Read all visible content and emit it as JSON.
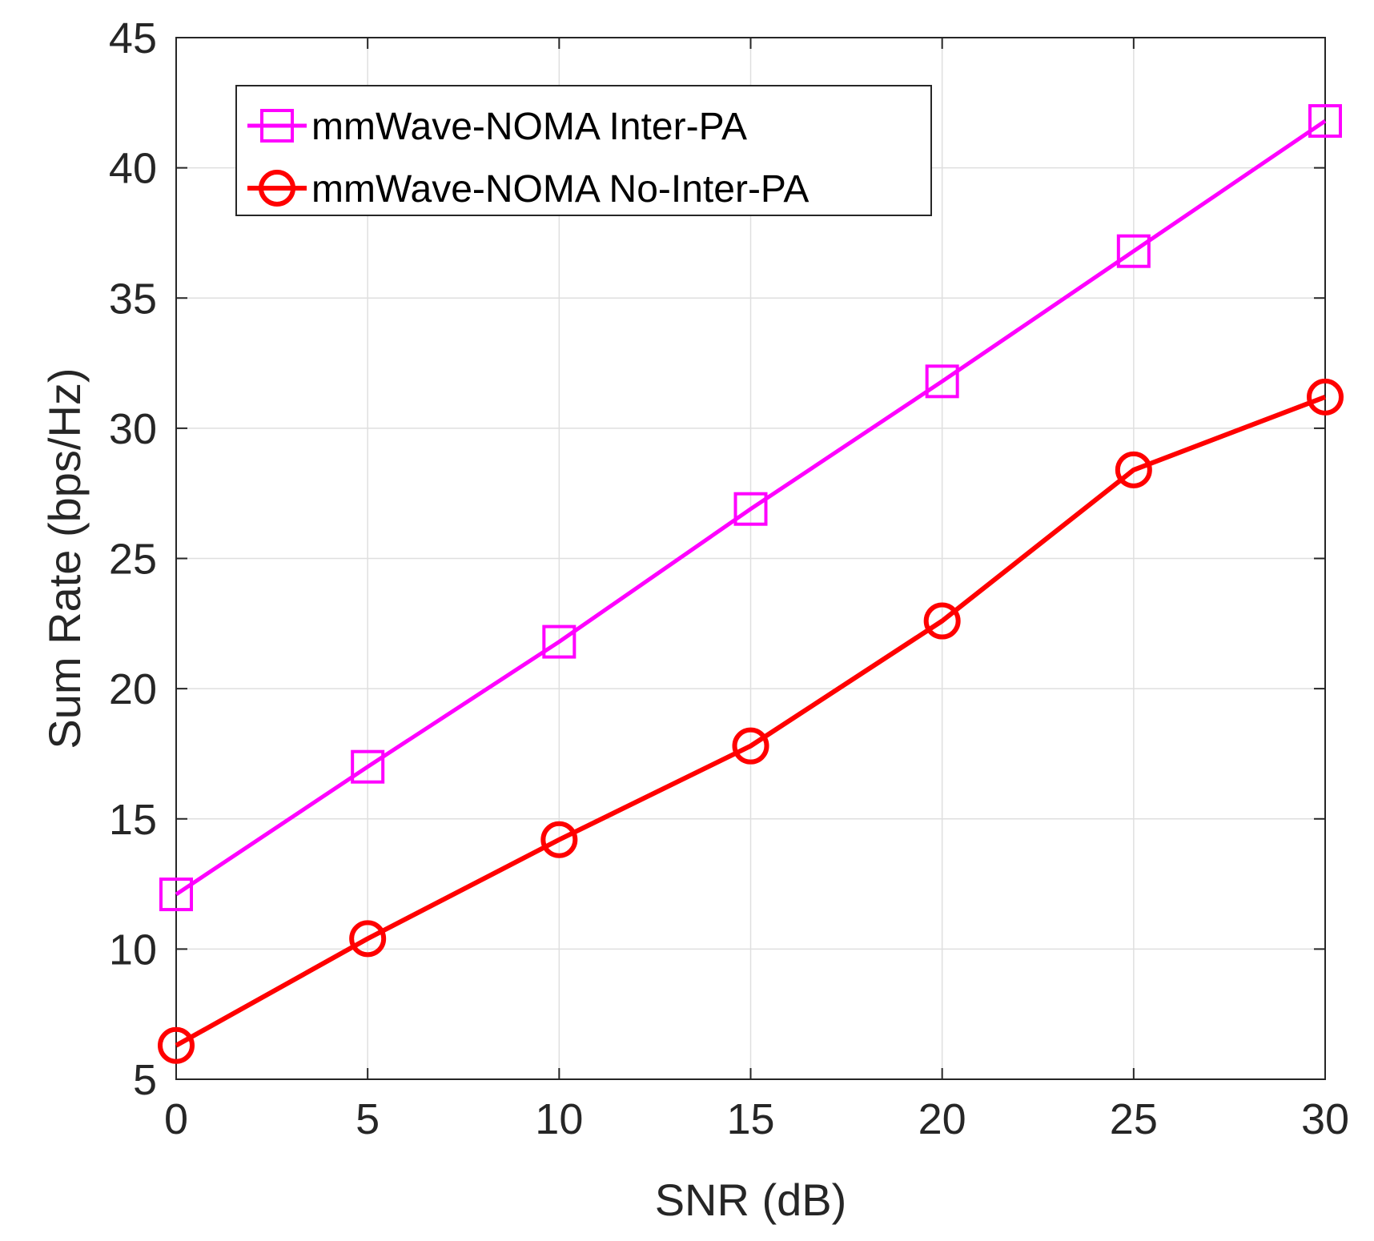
{
  "chart_data": {
    "type": "line",
    "xlabel": "SNR (dB)",
    "ylabel": "Sum Rate (bps/Hz)",
    "xlim": [
      0,
      30
    ],
    "ylim": [
      5,
      45
    ],
    "xticks": [
      0,
      5,
      10,
      15,
      20,
      25,
      30
    ],
    "yticks": [
      5,
      10,
      15,
      20,
      25,
      30,
      35,
      40,
      45
    ],
    "grid": true,
    "legend_position": "top-left",
    "x": [
      0,
      5,
      10,
      15,
      20,
      25,
      30
    ],
    "series": [
      {
        "name": "mmWave-NOMA Inter-PA",
        "marker": "square",
        "color": "#ff00ff",
        "values": [
          12.1,
          17.0,
          21.8,
          26.9,
          31.8,
          36.8,
          41.8
        ]
      },
      {
        "name": "mmWave-NOMA No-Inter-PA",
        "marker": "circle",
        "color": "#ff0000",
        "values": [
          6.3,
          10.4,
          14.2,
          17.8,
          22.6,
          28.4,
          31.2
        ]
      }
    ]
  }
}
